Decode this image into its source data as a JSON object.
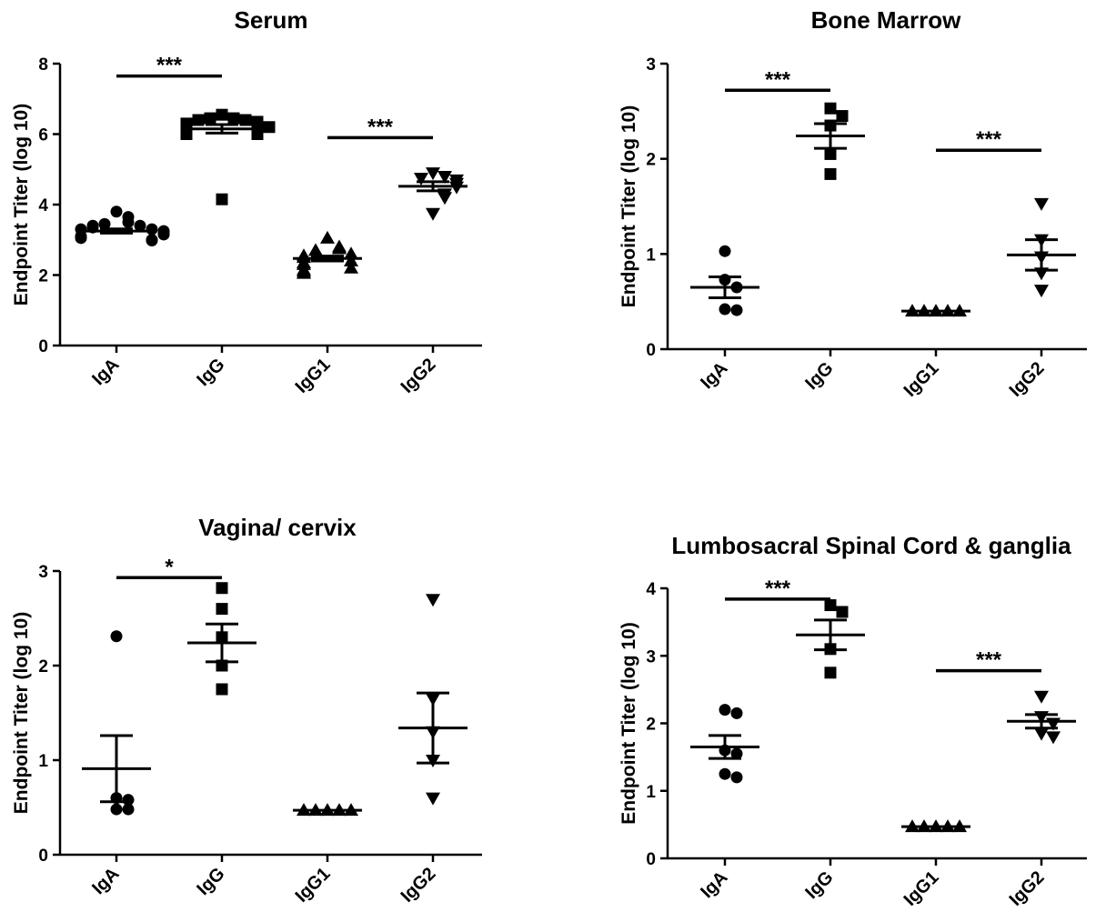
{
  "chart_data": [
    {
      "type": "scatter",
      "title": "Serum",
      "xlabel": "",
      "ylabel": "Endpoint Titer (log 10)",
      "ylim": [
        0,
        8
      ],
      "yticks": [
        0,
        2,
        4,
        6,
        8
      ],
      "categories": [
        "IgA",
        "IgG",
        "IgG1",
        "IgG2"
      ],
      "markers": [
        "circle",
        "square",
        "triangle-up",
        "triangle-down"
      ],
      "points": [
        [
          3.8,
          3.65,
          3.5,
          3.45,
          3.4,
          3.35,
          3.3,
          3.25,
          3.2,
          3.15,
          3.1,
          3.05,
          3.0,
          2.98,
          3.3,
          3.4
        ],
        [
          6.55,
          6.45,
          6.4,
          6.35,
          6.3,
          6.25,
          6.2,
          6.15,
          6.1,
          6.05,
          6.0,
          6.0,
          6.4,
          6.45,
          4.15
        ],
        [
          3.05,
          2.8,
          2.75,
          2.7,
          2.6,
          2.55,
          2.5,
          2.4,
          2.35,
          2.3,
          2.2,
          2.15,
          2.1,
          2.05
        ],
        [
          4.9,
          4.8,
          4.75,
          4.7,
          4.6,
          4.5,
          4.3,
          4.2,
          3.75
        ]
      ],
      "mean": [
        3.25,
        6.15,
        2.47,
        4.52
      ],
      "sem": [
        0.06,
        0.12,
        0.07,
        0.13
      ],
      "significance": [
        {
          "from": 0,
          "to": 1,
          "label": "***",
          "y": 7.65
        },
        {
          "from": 2,
          "to": 3,
          "label": "***",
          "y": 5.9
        }
      ]
    },
    {
      "type": "scatter",
      "title": "Bone Marrow",
      "xlabel": "",
      "ylabel": "Endpoint Titer (log 10)",
      "ylim": [
        0,
        3
      ],
      "yticks": [
        0,
        1,
        2,
        3
      ],
      "categories": [
        "IgA",
        "IgG",
        "IgG1",
        "IgG2"
      ],
      "markers": [
        "circle",
        "square",
        "triangle-up",
        "triangle-down"
      ],
      "points": [
        [
          1.03,
          0.73,
          0.65,
          0.42,
          0.41
        ],
        [
          2.53,
          2.45,
          2.35,
          2.05,
          1.84
        ],
        [
          0.4,
          0.4,
          0.4,
          0.4,
          0.4
        ],
        [
          1.53,
          1.15,
          0.97,
          0.8,
          0.62
        ]
      ],
      "mean": [
        0.65,
        2.24,
        0.4,
        0.99
      ],
      "sem": [
        0.11,
        0.13,
        0.0,
        0.16
      ],
      "significance": [
        {
          "from": 0,
          "to": 1,
          "label": "***",
          "y": 2.72
        },
        {
          "from": 2,
          "to": 3,
          "label": "***",
          "y": 2.09
        }
      ]
    },
    {
      "type": "scatter",
      "title": "Vagina/ cervix",
      "xlabel": "",
      "ylabel": "Endpoint Titer (log 10)",
      "ylim": [
        0,
        3
      ],
      "yticks": [
        0,
        1,
        2,
        3
      ],
      "categories": [
        "IgA",
        "IgG",
        "IgG1",
        "IgG2"
      ],
      "markers": [
        "circle",
        "square",
        "triangle-up",
        "triangle-down"
      ],
      "points": [
        [
          2.31,
          0.6,
          0.58,
          0.48,
          0.48
        ],
        [
          2.82,
          2.6,
          2.3,
          2.0,
          1.75
        ],
        [
          0.47,
          0.47,
          0.47,
          0.47,
          0.47
        ],
        [
          2.7,
          1.65,
          1.3,
          1.0,
          0.6
        ]
      ],
      "mean": [
        0.91,
        2.24,
        0.47,
        1.34
      ],
      "sem": [
        0.35,
        0.2,
        0.0,
        0.37
      ],
      "significance": [
        {
          "from": 0,
          "to": 1,
          "label": "*",
          "y": 2.93
        }
      ]
    },
    {
      "type": "scatter",
      "title": "Lumbosacral Spinal Cord & ganglia",
      "xlabel": "",
      "ylabel": "Endpoint Titer (log 10)",
      "ylim": [
        0,
        4
      ],
      "yticks": [
        0,
        1,
        2,
        3,
        4
      ],
      "categories": [
        "IgA",
        "IgG",
        "IgG1",
        "IgG2"
      ],
      "markers": [
        "circle",
        "square",
        "triangle-up",
        "triangle-down"
      ],
      "points": [
        [
          2.2,
          2.15,
          1.6,
          1.55,
          1.25,
          1.2
        ],
        [
          3.75,
          3.65,
          3.1,
          2.75
        ],
        [
          0.47,
          0.47,
          0.47,
          0.47,
          0.47
        ],
        [
          2.4,
          2.1,
          2.0,
          1.85,
          1.8
        ]
      ],
      "mean": [
        1.65,
        3.31,
        0.47,
        2.03
      ],
      "sem": [
        0.17,
        0.22,
        0.0,
        0.1
      ],
      "significance": [
        {
          "from": 0,
          "to": 1,
          "label": "***",
          "y": 3.84
        },
        {
          "from": 2,
          "to": 3,
          "label": "***",
          "y": 2.78
        }
      ]
    }
  ]
}
